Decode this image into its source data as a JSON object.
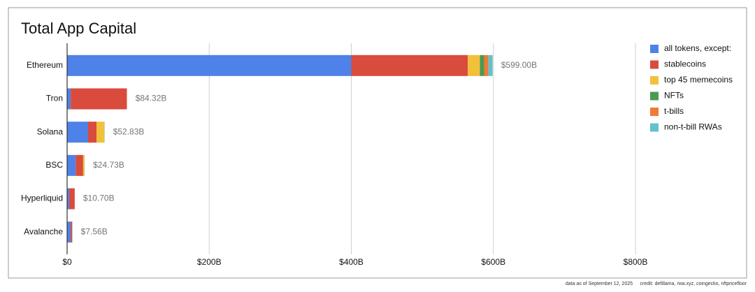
{
  "chart_data": {
    "type": "stacked-barh",
    "title": "Total App Capital",
    "categories": [
      "Ethereum",
      "Tron",
      "Solana",
      "BSC",
      "Hyperliquid",
      "Avalanche"
    ],
    "series": [
      {
        "name": "all tokens, except:",
        "color": "#4f82e8",
        "values": [
          400,
          5,
          29.5,
          12,
          3,
          5
        ]
      },
      {
        "name": "stablecoins",
        "color": "#d94b3d",
        "values": [
          164,
          79,
          12,
          10.5,
          7.7,
          2
        ]
      },
      {
        "name": "top 45 memecoins",
        "color": "#f3c03a",
        "values": [
          17,
          0,
          11,
          2,
          0,
          0
        ]
      },
      {
        "name": "NFTs",
        "color": "#4b9a55",
        "values": [
          6,
          0,
          0,
          0,
          0,
          0
        ]
      },
      {
        "name": "t-bills",
        "color": "#ee7b36",
        "values": [
          6,
          0.32,
          0,
          0,
          0,
          0
        ]
      },
      {
        "name": "non-t-bill RWAs",
        "color": "#64c1ca",
        "values": [
          6,
          0,
          0.33,
          0.23,
          0,
          0.56
        ]
      }
    ],
    "totals": {
      "values": [
        599,
        84.32,
        52.83,
        24.73,
        10.7,
        7.56
      ],
      "value_labels": [
        "$599.00B",
        "$84.32B",
        "$52.83B",
        "$24.73B",
        "$10.70B",
        "$7.56B"
      ]
    },
    "xlim": [
      0,
      800
    ],
    "xticks": [
      {
        "value": 0,
        "label": "$0"
      },
      {
        "value": 200,
        "label": "$200B"
      },
      {
        "value": 400,
        "label": "$400B"
      },
      {
        "value": 600,
        "label": "$600B"
      },
      {
        "value": 800,
        "label": "$800B"
      }
    ],
    "grid": true,
    "legend": "right",
    "footnotes": [
      "data as of September 12, 2025",
      "credit: defillama, rwa.xyz, coingecko, nftpricefloor"
    ]
  }
}
